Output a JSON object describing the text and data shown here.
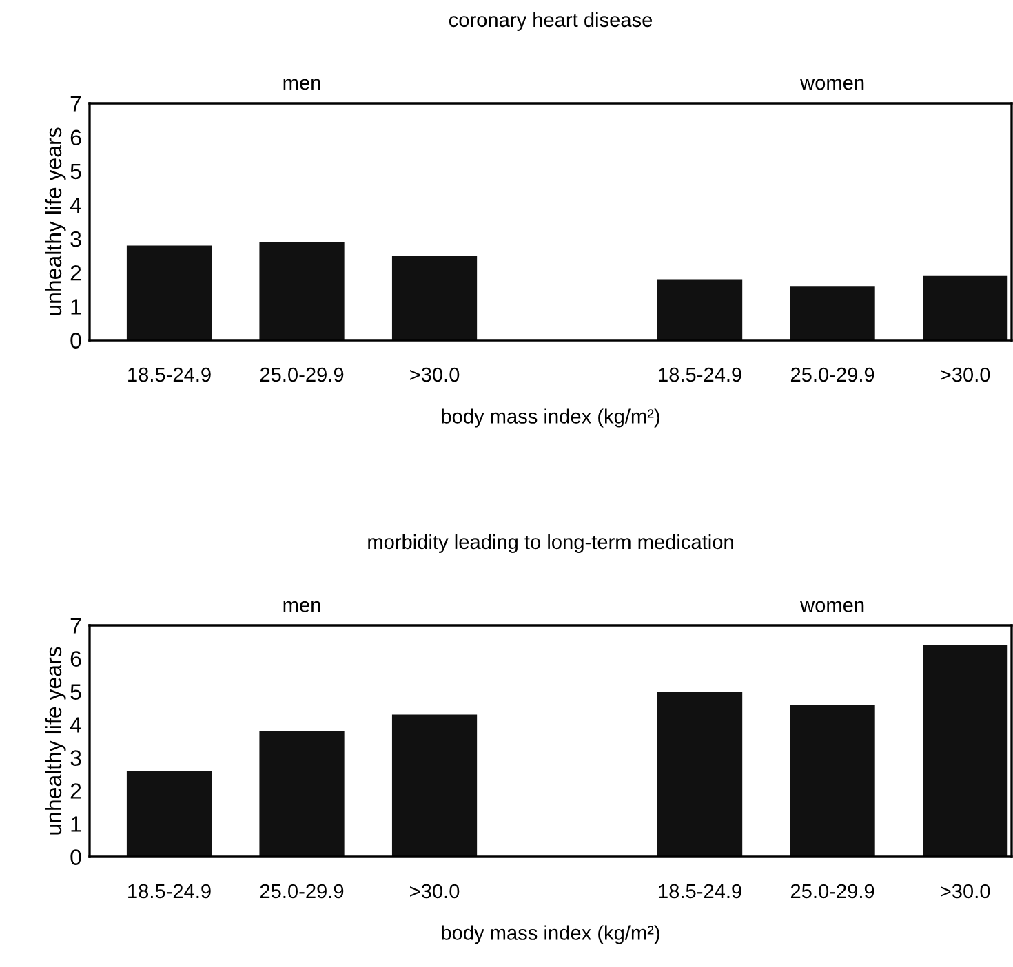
{
  "chart_data": [
    {
      "type": "bar",
      "title": "coronary heart disease",
      "xlabel": "body mass index (kg/m²)",
      "ylabel": "unhealthy life years",
      "categories": [
        "18.5-24.9",
        "25.0-29.9",
        ">30.0",
        null,
        "18.5-24.9",
        "25.0-29.9",
        ">30.0"
      ],
      "values": [
        2.8,
        2.9,
        2.5,
        null,
        1.8,
        1.6,
        1.9
      ],
      "color": "#111111",
      "ylim": [
        0,
        7
      ],
      "yticks": [
        0,
        1,
        2,
        3,
        4,
        5,
        6,
        7
      ],
      "grid": false,
      "legend": false,
      "annotations": [
        "men",
        "women"
      ]
    },
    {
      "type": "bar",
      "title": "morbidity leading to long-term medication",
      "xlabel": "body mass index (kg/m²)",
      "ylabel": "unhealthy life years",
      "categories": [
        "18.5-24.9",
        "25.0-29.9",
        ">30.0",
        null,
        "18.5-24.9",
        "25.0-29.9",
        ">30.0"
      ],
      "values": [
        2.6,
        3.8,
        4.3,
        null,
        5.0,
        4.6,
        6.4
      ],
      "color": "#111111",
      "ylim": [
        0,
        7
      ],
      "yticks": [
        0,
        1,
        2,
        3,
        4,
        5,
        6,
        7
      ],
      "grid": false,
      "legend": false,
      "annotations": [
        "men",
        "women"
      ]
    }
  ]
}
